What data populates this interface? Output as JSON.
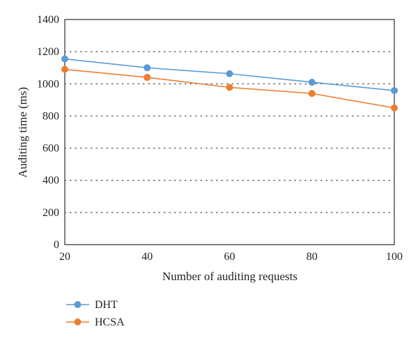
{
  "chart_data": {
    "type": "line",
    "title": "",
    "xlabel": "Number of auditing requests",
    "ylabel": "Auditing time (ms)",
    "x": [
      20,
      40,
      60,
      80,
      100
    ],
    "xlim": [
      20,
      100
    ],
    "ylim": [
      0,
      1400
    ],
    "x_ticks": [
      "20",
      "40",
      "60",
      "80",
      "100"
    ],
    "y_ticks": [
      "0",
      "200",
      "400",
      "600",
      "800",
      "1000",
      "1200",
      "1400"
    ],
    "grid": "horizontal dotted",
    "legend_position": "bottom-left",
    "series": [
      {
        "name": "DHT",
        "color": "#5b9bd5",
        "values": [
          1155,
          1100,
          1063,
          1010,
          958
        ]
      },
      {
        "name": "HCSA",
        "color": "#ed7d31",
        "values": [
          1090,
          1040,
          978,
          940,
          850
        ]
      }
    ]
  }
}
